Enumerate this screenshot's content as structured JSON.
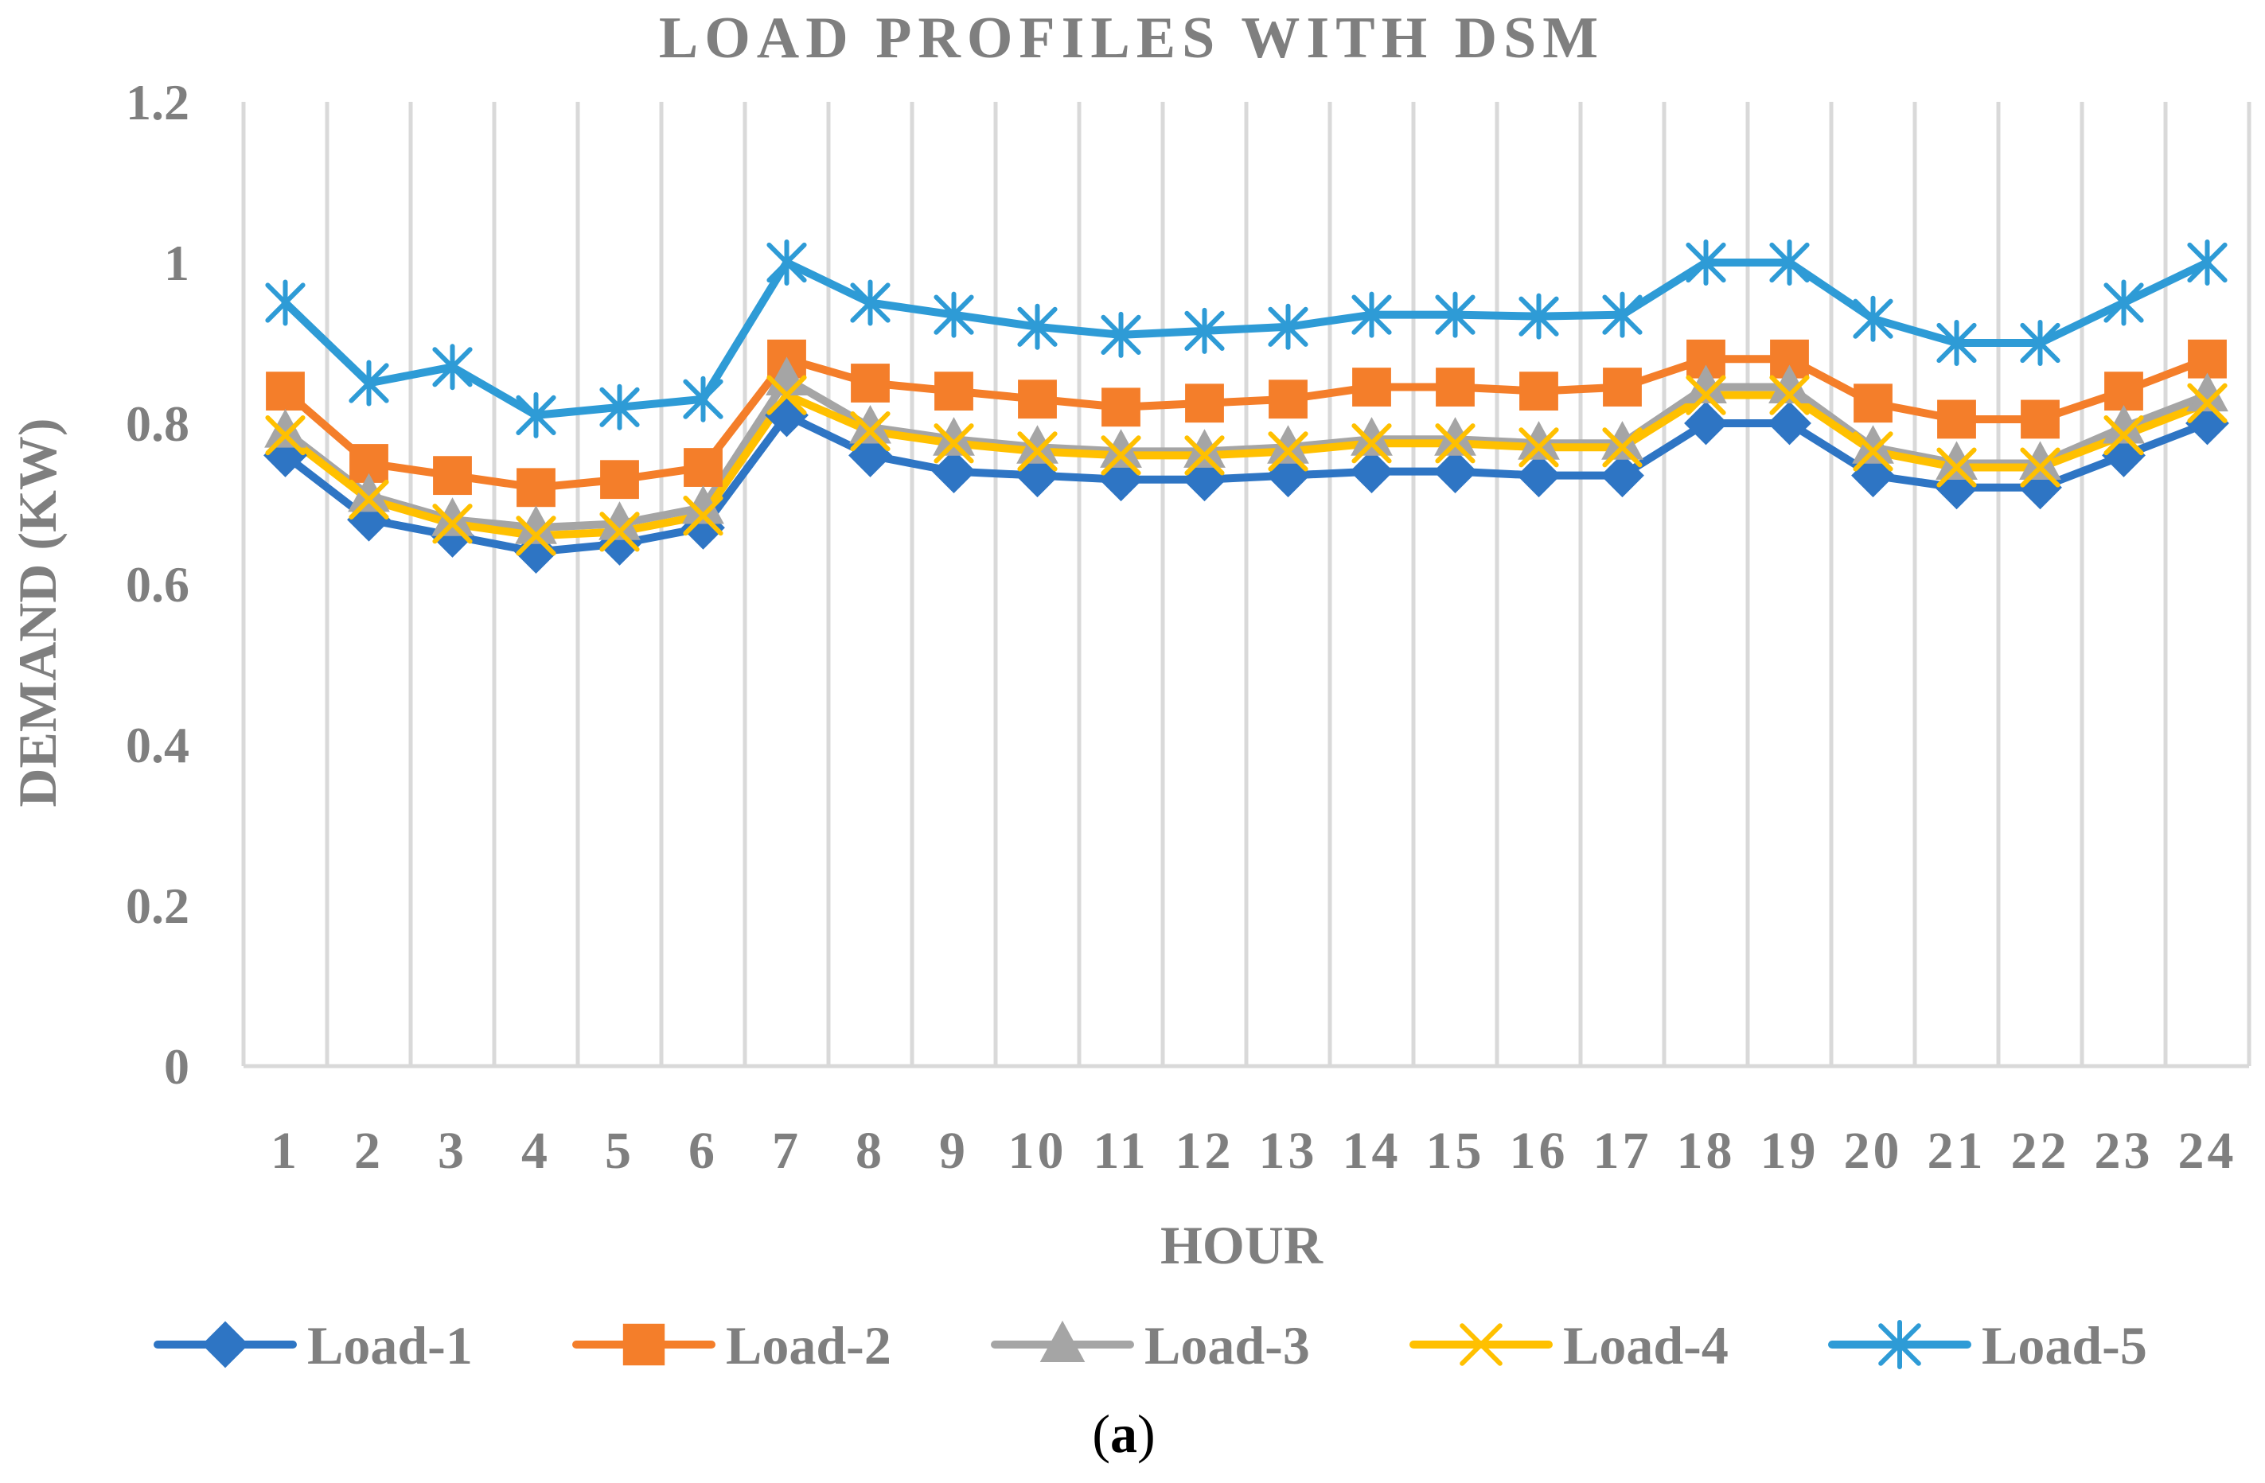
{
  "chart_data": {
    "type": "line",
    "title": "LOAD PROFILES WITH DSM",
    "xlabel": "HOUR",
    "ylabel": "DEMAND (KW)",
    "caption_prefix": "(",
    "caption_letter": "a",
    "caption_suffix": ")",
    "categories": [
      "1",
      "2",
      "3",
      "4",
      "5",
      "6",
      "7",
      "8",
      "9",
      "10",
      "11",
      "12",
      "13",
      "14",
      "15",
      "16",
      "17",
      "18",
      "19",
      "20",
      "21",
      "22",
      "23",
      "24"
    ],
    "ylim": [
      0,
      1.2
    ],
    "yticks": [
      0,
      0.2,
      0.4,
      0.6,
      0.8,
      1,
      1.2
    ],
    "ytick_labels": [
      "0",
      "0.2",
      "0.4",
      "0.6",
      "0.8",
      "1",
      "1.2"
    ],
    "grid": "vertical",
    "legend_position": "bottom",
    "series": [
      {
        "name": "Load-1",
        "color": "#2E75C4",
        "marker": "diamond",
        "values": [
          0.76,
          0.68,
          0.66,
          0.64,
          0.65,
          0.67,
          0.81,
          0.76,
          0.74,
          0.735,
          0.73,
          0.73,
          0.735,
          0.74,
          0.74,
          0.735,
          0.735,
          0.8,
          0.8,
          0.735,
          0.72,
          0.72,
          0.76,
          0.8
        ]
      },
      {
        "name": "Load-2",
        "color": "#F47E2A",
        "marker": "square",
        "values": [
          0.84,
          0.75,
          0.735,
          0.72,
          0.73,
          0.745,
          0.88,
          0.85,
          0.84,
          0.83,
          0.82,
          0.825,
          0.83,
          0.845,
          0.845,
          0.84,
          0.845,
          0.88,
          0.88,
          0.825,
          0.805,
          0.805,
          0.84,
          0.88
        ]
      },
      {
        "name": "Load-3",
        "color": "#A5A5A5",
        "marker": "triangle",
        "values": [
          0.79,
          0.71,
          0.68,
          0.67,
          0.675,
          0.695,
          0.855,
          0.795,
          0.78,
          0.77,
          0.765,
          0.765,
          0.77,
          0.78,
          0.78,
          0.775,
          0.775,
          0.845,
          0.845,
          0.77,
          0.75,
          0.75,
          0.795,
          0.835
        ]
      },
      {
        "name": "Load-4",
        "color": "#FFC000",
        "marker": "x",
        "values": [
          0.785,
          0.705,
          0.675,
          0.66,
          0.665,
          0.685,
          0.835,
          0.79,
          0.775,
          0.765,
          0.76,
          0.76,
          0.765,
          0.775,
          0.775,
          0.77,
          0.77,
          0.835,
          0.835,
          0.765,
          0.745,
          0.745,
          0.785,
          0.825
        ]
      },
      {
        "name": "Load-5",
        "color": "#2E9BD6",
        "marker": "asterisk",
        "values": [
          0.95,
          0.85,
          0.87,
          0.81,
          0.82,
          0.83,
          1.0,
          0.95,
          0.935,
          0.92,
          0.91,
          0.915,
          0.92,
          0.935,
          0.935,
          0.933,
          0.935,
          1.0,
          1.0,
          0.93,
          0.9,
          0.9,
          0.95,
          1.0
        ]
      }
    ]
  }
}
